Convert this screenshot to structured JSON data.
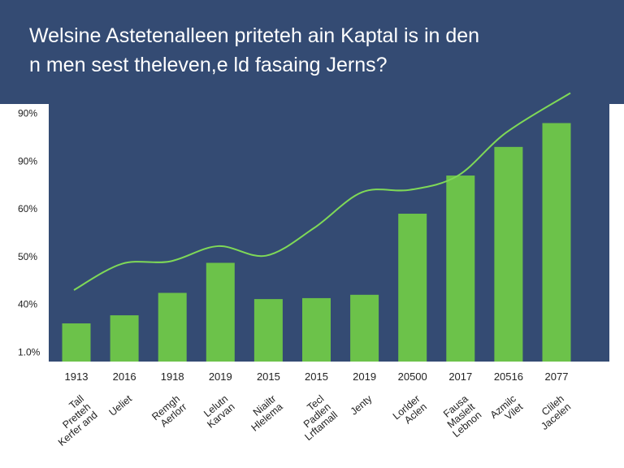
{
  "header": {
    "title_line1": "Welsine Astetenalleen priteteh ain Kaptal is in den",
    "title_line2": "n men sest theleven,e ld fasaing Jerns?"
  },
  "colors": {
    "header": "#344b73",
    "plot_bg": "#344b73",
    "bar": "#6cc24a",
    "line": "#7fd957"
  },
  "chart_data": {
    "type": "bar",
    "title": "",
    "xlabel": "",
    "ylabel": "",
    "y_tick_labels": [
      "1.0%",
      "40%",
      "50%",
      "60%",
      "90%",
      "90%"
    ],
    "y_tick_values": [
      1,
      2,
      3,
      4,
      5,
      6
    ],
    "ylim": [
      0.8,
      6.2
    ],
    "x_tick_labels": [
      "1913",
      "2016",
      "1918",
      "2019",
      "2015",
      "2015",
      "2019",
      "20500",
      "2017",
      "20516",
      "2077"
    ],
    "categories": [
      [
        "Tall",
        "Pretteh",
        "Kerfer and"
      ],
      [
        "Ueliet"
      ],
      [
        "Remgh",
        "Aerlorr"
      ],
      [
        "Lelutn",
        "Karvan"
      ],
      [
        "Niailtr",
        "Hlelema"
      ],
      [
        "Tecl",
        "Padlen",
        "Lrftamall"
      ],
      [
        "Jenty"
      ],
      [
        "Lorlder",
        "Aclen"
      ],
      [
        "Fausa",
        "Maslelt",
        "Lebnon"
      ],
      [
        "Azmilc",
        "Vilet"
      ],
      [
        "Clileh",
        "Jacelen"
      ]
    ],
    "series": [
      {
        "type": "bar",
        "values": [
          1.6,
          1.77,
          2.24,
          2.87,
          2.11,
          2.13,
          2.2,
          3.9,
          4.7,
          5.3,
          5.8
        ]
      },
      {
        "type": "line",
        "values": [
          2.3,
          2.85,
          2.9,
          3.22,
          3.02,
          3.6,
          4.35,
          4.4,
          4.7,
          5.6,
          6.43
        ]
      }
    ],
    "grid": false,
    "legend": "none"
  }
}
